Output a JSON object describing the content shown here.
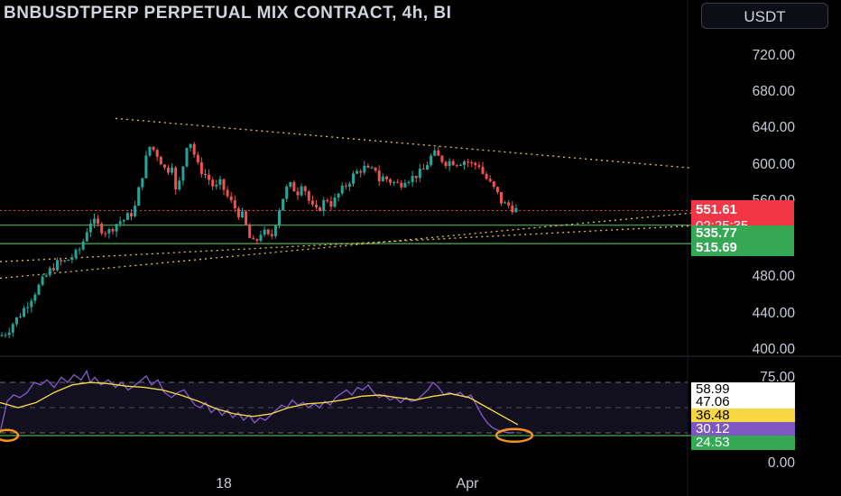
{
  "header": {
    "title": "BNBUSDTPERP PERPETUAL MIX CONTRACT, 4h, BI",
    "currency": "USDT"
  },
  "price_axis": {
    "ticks": [
      "720.00",
      "680.00",
      "640.00",
      "600.00",
      "560.00",
      "480.00",
      "440.00",
      "400.00"
    ]
  },
  "price_tags": {
    "last_price": "551.61",
    "countdown": "02:25:35",
    "level_1": "535.77",
    "level_2": "515.69"
  },
  "rsi_axis": {
    "top": "75.00",
    "bottom": "0.00",
    "values": {
      "v1": "58.99",
      "v2": "47.06",
      "v3": "36.48",
      "v4": "30.12",
      "v5": "24.53"
    }
  },
  "time_axis": {
    "labels": [
      "18",
      "Apr"
    ]
  },
  "colors": {
    "background": "#000000",
    "up": "#26a69a",
    "down": "#ef5350",
    "resistance_dotted": "#e5c546",
    "support_line": "#4caf50",
    "rsi_line": "#7e57c2",
    "rsi_ma": "#f5d742",
    "highlight_circle": "#f7931a"
  },
  "chart_data": {
    "type": "candlestick",
    "title": "BNBUSDTPERP PERPETUAL MIX CONTRACT, 4h",
    "ylim": [
      392,
      740
    ],
    "last_price": 551.61,
    "horizontal_levels": [
      535.77,
      515.69
    ],
    "close_path": [
      [
        0,
        415
      ],
      [
        8,
        420
      ],
      [
        15,
        430
      ],
      [
        22,
        438
      ],
      [
        30,
        450
      ],
      [
        38,
        462
      ],
      [
        45,
        472
      ],
      [
        52,
        482
      ],
      [
        58,
        490
      ],
      [
        65,
        495
      ],
      [
        72,
        496
      ],
      [
        78,
        500
      ],
      [
        85,
        505
      ],
      [
        90,
        512
      ],
      [
        96,
        530
      ],
      [
        100,
        540
      ],
      [
        105,
        538
      ],
      [
        112,
        532
      ],
      [
        120,
        528
      ],
      [
        126,
        535
      ],
      [
        132,
        540
      ],
      [
        138,
        542
      ],
      [
        145,
        548
      ],
      [
        150,
        556
      ],
      [
        155,
        580
      ],
      [
        160,
        600
      ],
      [
        165,
        622
      ],
      [
        170,
        618
      ],
      [
        175,
        612
      ],
      [
        180,
        602
      ],
      [
        185,
        592
      ],
      [
        190,
        608
      ],
      [
        195,
        570
      ],
      [
        200,
        586
      ],
      [
        205,
        612
      ],
      [
        208,
        630
      ],
      [
        212,
        625
      ],
      [
        216,
        610
      ],
      [
        220,
        598
      ],
      [
        225,
        594
      ],
      [
        232,
        585
      ],
      [
        238,
        575
      ],
      [
        245,
        582
      ],
      [
        250,
        570
      ],
      [
        255,
        562
      ],
      [
        260,
        555
      ],
      [
        265,
        548
      ],
      [
        270,
        545
      ],
      [
        275,
        525
      ],
      [
        280,
        515
      ],
      [
        285,
        520
      ],
      [
        290,
        530
      ],
      [
        295,
        525
      ],
      [
        300,
        520
      ],
      [
        305,
        538
      ],
      [
        310,
        556
      ],
      [
        315,
        570
      ],
      [
        320,
        580
      ],
      [
        325,
        576
      ],
      [
        330,
        572
      ],
      [
        335,
        585
      ],
      [
        340,
        568
      ],
      [
        345,
        556
      ],
      [
        350,
        550
      ],
      [
        355,
        556
      ],
      [
        362,
        565
      ],
      [
        368,
        558
      ],
      [
        374,
        568
      ],
      [
        380,
        575
      ],
      [
        386,
        583
      ],
      [
        392,
        590
      ],
      [
        398,
        596
      ],
      [
        404,
        598
      ],
      [
        410,
        593
      ],
      [
        416,
        598
      ],
      [
        420,
        585
      ],
      [
        425,
        588
      ],
      [
        430,
        585
      ],
      [
        435,
        583
      ],
      [
        440,
        580
      ],
      [
        445,
        582
      ],
      [
        450,
        588
      ],
      [
        455,
        586
      ],
      [
        460,
        590
      ],
      [
        465,
        592
      ],
      [
        470,
        596
      ],
      [
        475,
        606
      ],
      [
        480,
        614
      ],
      [
        485,
        610
      ],
      [
        490,
        607
      ],
      [
        495,
        604
      ],
      [
        500,
        606
      ],
      [
        505,
        604
      ],
      [
        510,
        605
      ],
      [
        515,
        606
      ],
      [
        520,
        604
      ],
      [
        525,
        600
      ],
      [
        530,
        604
      ],
      [
        535,
        592
      ],
      [
        540,
        585
      ],
      [
        545,
        578
      ],
      [
        550,
        572
      ],
      [
        555,
        562
      ],
      [
        560,
        558
      ],
      [
        565,
        557
      ],
      [
        570,
        553
      ],
      [
        574,
        551.61
      ]
    ],
    "rsi": {
      "ylim": [
        0,
        100
      ],
      "bands": [
        70,
        30
      ],
      "line": [
        [
          0,
          30
        ],
        [
          8,
          55
        ],
        [
          15,
          60
        ],
        [
          22,
          58
        ],
        [
          30,
          62
        ],
        [
          38,
          70
        ],
        [
          45,
          68
        ],
        [
          52,
          72
        ],
        [
          60,
          66
        ],
        [
          68,
          74
        ],
        [
          75,
          70
        ],
        [
          82,
          76
        ],
        [
          90,
          72
        ],
        [
          96,
          79
        ],
        [
          100,
          70
        ],
        [
          105,
          74
        ],
        [
          112,
          68
        ],
        [
          120,
          72
        ],
        [
          128,
          66
        ],
        [
          135,
          70
        ],
        [
          142,
          64
        ],
        [
          150,
          68
        ],
        [
          157,
          72
        ],
        [
          162,
          75
        ],
        [
          168,
          68
        ],
        [
          175,
          72
        ],
        [
          182,
          62
        ],
        [
          190,
          58
        ],
        [
          197,
          62
        ],
        [
          204,
          64
        ],
        [
          210,
          58
        ],
        [
          216,
          52
        ],
        [
          222,
          50
        ],
        [
          228,
          54
        ],
        [
          234,
          46
        ],
        [
          240,
          50
        ],
        [
          246,
          44
        ],
        [
          252,
          48
        ],
        [
          258,
          42
        ],
        [
          264,
          46
        ],
        [
          270,
          40
        ],
        [
          276,
          44
        ],
        [
          282,
          38
        ],
        [
          288,
          42
        ],
        [
          294,
          40
        ],
        [
          300,
          44
        ],
        [
          306,
          48
        ],
        [
          312,
          52
        ],
        [
          318,
          50
        ],
        [
          324,
          56
        ],
        [
          330,
          52
        ],
        [
          336,
          54
        ],
        [
          342,
          50
        ],
        [
          348,
          53
        ],
        [
          354,
          50
        ],
        [
          360,
          55
        ],
        [
          366,
          52
        ],
        [
          372,
          58
        ],
        [
          378,
          61
        ],
        [
          384,
          64
        ],
        [
          390,
          60
        ],
        [
          396,
          66
        ],
        [
          402,
          64
        ],
        [
          408,
          68
        ],
        [
          414,
          62
        ],
        [
          420,
          58
        ],
        [
          426,
          60
        ],
        [
          432,
          56
        ],
        [
          438,
          58
        ],
        [
          444,
          54
        ],
        [
          450,
          58
        ],
        [
          456,
          55
        ],
        [
          462,
          56
        ],
        [
          468,
          60
        ],
        [
          474,
          64
        ],
        [
          480,
          70
        ],
        [
          486,
          66
        ],
        [
          492,
          60
        ],
        [
          498,
          62
        ],
        [
          504,
          60
        ],
        [
          510,
          62
        ],
        [
          516,
          58
        ],
        [
          522,
          60
        ],
        [
          528,
          52
        ],
        [
          534,
          44
        ],
        [
          540,
          38
        ],
        [
          546,
          34
        ],
        [
          552,
          32
        ],
        [
          558,
          31
        ],
        [
          564,
          30
        ],
        [
          570,
          30.12
        ]
      ],
      "ma": [
        [
          0,
          54
        ],
        [
          20,
          50
        ],
        [
          40,
          54
        ],
        [
          60,
          62
        ],
        [
          80,
          68
        ],
        [
          100,
          70
        ],
        [
          120,
          69
        ],
        [
          140,
          67
        ],
        [
          160,
          66
        ],
        [
          180,
          64
        ],
        [
          200,
          60
        ],
        [
          220,
          55
        ],
        [
          240,
          49
        ],
        [
          260,
          45
        ],
        [
          280,
          43
        ],
        [
          300,
          45
        ],
        [
          320,
          50
        ],
        [
          340,
          53
        ],
        [
          360,
          54
        ],
        [
          380,
          56
        ],
        [
          400,
          59
        ],
        [
          420,
          60
        ],
        [
          440,
          58
        ],
        [
          460,
          56
        ],
        [
          480,
          59
        ],
        [
          500,
          61
        ],
        [
          520,
          58
        ],
        [
          540,
          50
        ],
        [
          560,
          42
        ],
        [
          574,
          36.48
        ]
      ]
    },
    "time_labels": [
      "18",
      "Apr"
    ]
  }
}
